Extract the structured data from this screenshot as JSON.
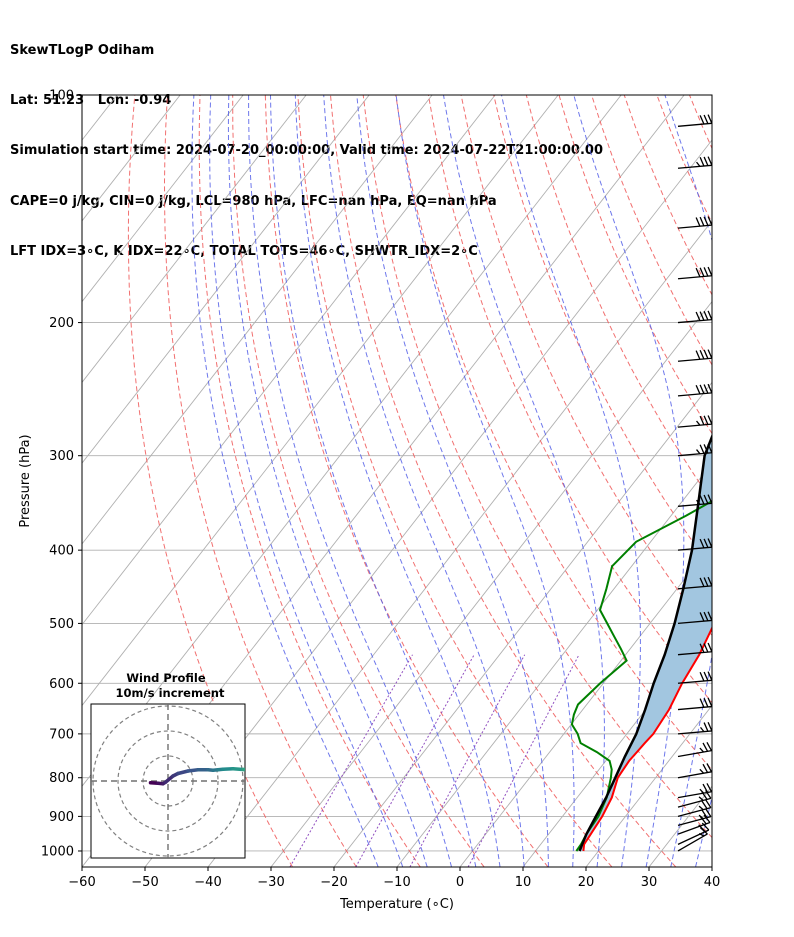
{
  "header": {
    "title": "SkewTLogP Odiham",
    "location": "Lat: 51.23   Lon: -0.94",
    "times": "Simulation start time: 2024-07-20_00:00:00, Valid time: 2024-07-22T21:00:00.00",
    "indices1": "CAPE=0 j/kg, CIN=0 j/kg, LCL=980 hPa, LFC=nan hPa, EQ=nan hPa",
    "indices2": "LFT IDX=3∘C, K IDX=22∘C, TOTAL TOTS=46∘C, SHWTR_IDX=2∘C"
  },
  "chart_data": {
    "type": "line",
    "subtype": "skew-T log-P",
    "xlabel": "Temperature (∘C)",
    "ylabel": "Pressure (hPa)",
    "xlim": [
      -60,
      40
    ],
    "ylim": [
      1050,
      100
    ],
    "y_scale": "log",
    "x_ticks": [
      "−60",
      "−50",
      "−40",
      "−30",
      "−20",
      "−10",
      "0",
      "10",
      "20",
      "30",
      "40"
    ],
    "x_tick_values": [
      -60,
      -50,
      -40,
      -30,
      -20,
      -10,
      0,
      10,
      20,
      30,
      40
    ],
    "y_ticks": [
      "100",
      "200",
      "300",
      "400",
      "500",
      "600",
      "700",
      "800",
      "900",
      "1000"
    ],
    "y_tick_values": [
      100,
      200,
      300,
      400,
      500,
      600,
      700,
      800,
      900,
      1000
    ],
    "grid": true,
    "colors": {
      "temperature": "#ff0000",
      "dewpoint": "#008000",
      "parcel": "#000000",
      "cape_shade": "#a2c6e0",
      "dry_adiabat": "#f06060",
      "moist_adiabat": "#5560e8",
      "mixing_ratio": "#9050c0",
      "isotherm": "#b0b0b0"
    },
    "series": [
      {
        "key": "temperature",
        "points": [
          [
            1000,
            17.6
          ],
          [
            980,
            16.9
          ],
          [
            950,
            16.7
          ],
          [
            900,
            16.3
          ],
          [
            850,
            15.5
          ],
          [
            800,
            14
          ],
          [
            760,
            13.7
          ],
          [
            720,
            14
          ],
          [
            700,
            14.2
          ],
          [
            650,
            13.7
          ],
          [
            600,
            12.5
          ],
          [
            550,
            11.7
          ],
          [
            500,
            10.2
          ],
          [
            450,
            8.8
          ],
          [
            400,
            7.4
          ],
          [
            360,
            6.3
          ],
          [
            330,
            6
          ],
          [
            300,
            6.3
          ],
          [
            280,
            7.1
          ],
          [
            260,
            8.5
          ],
          [
            240,
            10.4
          ],
          [
            220,
            12.6
          ],
          [
            200,
            15.4
          ],
          [
            180,
            20.9
          ],
          [
            160,
            25.5
          ],
          [
            150,
            27.7
          ],
          [
            140,
            29.2
          ],
          [
            130,
            30.5
          ],
          [
            120,
            32.5
          ],
          [
            115,
            32.9
          ],
          [
            110,
            33.7
          ],
          [
            105,
            34.6
          ],
          [
            100,
            35.2
          ]
        ]
      },
      {
        "key": "dewpoint",
        "points": [
          [
            1000,
            16.5
          ],
          [
            980,
            16.4
          ],
          [
            950,
            16
          ],
          [
            900,
            15.7
          ],
          [
            850,
            14.7
          ],
          [
            800,
            12.9
          ],
          [
            780,
            12
          ],
          [
            760,
            10.6
          ],
          [
            740,
            7.5
          ],
          [
            720,
            3.8
          ],
          [
            700,
            2.2
          ],
          [
            680,
            0.1
          ],
          [
            660,
            -0.8
          ],
          [
            640,
            -1.4
          ],
          [
            600,
            -0.5
          ],
          [
            560,
            0.9
          ],
          [
            540,
            -1.5
          ],
          [
            520,
            -4.1
          ],
          [
            500,
            -6.8
          ],
          [
            480,
            -9.6
          ],
          [
            450,
            -11.2
          ],
          [
            420,
            -13.1
          ],
          [
            390,
            -12.3
          ],
          [
            360,
            -7.6
          ],
          [
            340,
            -4.6
          ],
          [
            320,
            -1.7
          ],
          [
            300,
            -0.2
          ],
          [
            280,
            -0.2
          ],
          [
            260,
            -1.1
          ],
          [
            250,
            -0.9
          ],
          [
            230,
            1.1
          ],
          [
            210,
            4.5
          ],
          [
            195,
            7.7
          ],
          [
            185,
            9.7
          ],
          [
            175,
            11.7
          ],
          [
            160,
            16.4
          ],
          [
            155,
            17.1
          ],
          [
            147,
            14.9
          ],
          [
            140,
            13
          ],
          [
            130,
            12.8
          ],
          [
            120,
            16.3
          ],
          [
            110,
            20.6
          ],
          [
            100,
            24.7
          ]
        ]
      },
      {
        "key": "parcel",
        "points": [
          [
            1000,
            17
          ],
          [
            980,
            16.6
          ],
          [
            950,
            16
          ],
          [
            900,
            15.3
          ],
          [
            850,
            14.6
          ],
          [
            800,
            13.6
          ],
          [
            750,
            12.5
          ],
          [
            700,
            11.5
          ],
          [
            650,
            9.9
          ],
          [
            600,
            8
          ],
          [
            550,
            6.2
          ],
          [
            500,
            3.9
          ],
          [
            450,
            1
          ],
          [
            400,
            -2.4
          ],
          [
            350,
            -6.9
          ],
          [
            300,
            -12.1
          ],
          [
            250,
            -15.8
          ],
          [
            200,
            -16.8
          ],
          [
            150,
            -14.6
          ],
          [
            120,
            -11.8
          ],
          [
            100,
            -9.7
          ]
        ]
      }
    ],
    "wind_barbs": {
      "pressures": [
        1000,
        980,
        950,
        925,
        900,
        875,
        850,
        800,
        750,
        700,
        650,
        600,
        550,
        500,
        450,
        400,
        350,
        300,
        275,
        250,
        225,
        200,
        175,
        150,
        125,
        110
      ],
      "speed_kt": [
        15,
        20,
        20,
        25,
        25,
        25,
        25,
        25,
        25,
        25,
        30,
        30,
        30,
        30,
        30,
        30,
        35,
        35,
        35,
        40,
        40,
        40,
        40,
        40,
        35,
        30
      ],
      "direction_deg": [
        240,
        245,
        250,
        255,
        255,
        255,
        260,
        260,
        260,
        265,
        265,
        265,
        265,
        265,
        265,
        265,
        265,
        265,
        265,
        265,
        265,
        265,
        265,
        265,
        265,
        265
      ]
    },
    "inset": {
      "title1": "Wind Profile",
      "title2": "10m/s increment",
      "ring_step_ms": 10,
      "rings": 3,
      "hodograph_points": [
        [
          -7,
          -0.7
        ],
        [
          -4,
          -0.9
        ],
        [
          -2,
          -1.1
        ],
        [
          -1,
          -0.5
        ],
        [
          2,
          2
        ],
        [
          4,
          3
        ],
        [
          8,
          4
        ],
        [
          12,
          4.5
        ],
        [
          16,
          4.5
        ],
        [
          18,
          4.3
        ],
        [
          20,
          4.5
        ],
        [
          22,
          4.7
        ],
        [
          26,
          4.9
        ],
        [
          30,
          4.6
        ],
        [
          34,
          4.5
        ],
        [
          37,
          4.8
        ],
        [
          39,
          5
        ],
        [
          41,
          5.2
        ],
        [
          43,
          5.5
        ],
        [
          44,
          5.6
        ],
        [
          44,
          6.3
        ],
        [
          44,
          7.2
        ],
        [
          44,
          8.2
        ],
        [
          44,
          9
        ],
        [
          44,
          9.5
        ]
      ],
      "colormap": [
        "#440154",
        "#3b528b",
        "#21918c",
        "#5ec962",
        "#fde725"
      ]
    }
  }
}
